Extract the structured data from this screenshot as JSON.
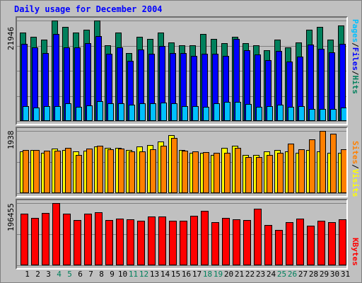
{
  "title": "Daily usage for December 2004",
  "colors": {
    "hits": "#00805c",
    "files": "#0000ff",
    "pages": "#00c0ff",
    "visits": "#ffff00",
    "sites": "#ff8000",
    "kbytes": "#ff0000",
    "weekday": "#000000",
    "weekend": "#00805c"
  },
  "legend": {
    "pages": "Pages",
    "files": "Files",
    "hits": "Hits",
    "sites": "Sites",
    "visits": "Visits",
    "kbytes": "KBytes",
    "sep1": "/",
    "sep2": "/",
    "sep3": "/"
  },
  "chart_data": [
    {
      "type": "bar",
      "y_max_label": "21946",
      "ylim": [
        0,
        21946
      ],
      "grid": true,
      "series": [
        {
          "name": "Hits",
          "values": [
            19300,
            18400,
            17700,
            21946,
            20600,
            19300,
            20000,
            21946,
            16500,
            19300,
            14900,
            18400,
            17900,
            19300,
            17200,
            16500,
            16500,
            19000,
            18000,
            17000,
            18400,
            17000,
            16500,
            15500,
            17800,
            16000,
            17200,
            20000,
            20500,
            17800,
            20800
          ]
        },
        {
          "name": "Files",
          "values": [
            16800,
            16100,
            14800,
            19000,
            16100,
            16000,
            17000,
            18600,
            14700,
            16100,
            13200,
            15600,
            14700,
            16400,
            14800,
            14800,
            14200,
            14700,
            14700,
            14200,
            18000,
            15500,
            14500,
            13300,
            15300,
            13000,
            14000,
            16700,
            15800,
            15000,
            16800
          ]
        },
        {
          "name": "Pages",
          "values": [
            3300,
            2900,
            3300,
            3200,
            3800,
            3100,
            3400,
            4400,
            3900,
            3900,
            3600,
            3900,
            3900,
            4000,
            3900,
            3200,
            3200,
            3100,
            3900,
            4100,
            4100,
            3700,
            3100,
            3300,
            3500,
            3100,
            3200,
            2700,
            2700,
            2600,
            2900
          ]
        }
      ]
    },
    {
      "type": "bar",
      "y_max_label": "1938",
      "ylim": [
        0,
        1938
      ],
      "grid": true,
      "series": [
        {
          "name": "Visits",
          "values": [
            1300,
            1350,
            1250,
            1380,
            1350,
            1300,
            1320,
            1450,
            1420,
            1400,
            1350,
            1450,
            1500,
            1600,
            1800,
            1350,
            1250,
            1260,
            1200,
            1400,
            1480,
            1200,
            1200,
            1300,
            1350,
            1300,
            1250,
            1350,
            1300,
            1250,
            1250
          ]
        },
        {
          "name": "Sites",
          "values": [
            1350,
            1350,
            1320,
            1330,
            1400,
            1190,
            1380,
            1480,
            1360,
            1380,
            1300,
            1300,
            1370,
            1480,
            1720,
            1330,
            1290,
            1270,
            1260,
            1250,
            1400,
            1130,
            1130,
            1180,
            1250,
            1550,
            1370,
            1680,
            1938,
            1860,
            1360
          ]
        }
      ]
    },
    {
      "type": "bar",
      "y_max_label": "196455",
      "ylim": [
        0,
        196455
      ],
      "grid": true,
      "series": [
        {
          "name": "KBytes",
          "values": [
            162000,
            150000,
            165000,
            196455,
            162000,
            143000,
            164000,
            168000,
            143000,
            148000,
            145000,
            140000,
            155000,
            153000,
            140000,
            141000,
            157000,
            172000,
            137000,
            150000,
            144000,
            143000,
            178000,
            128000,
            112000,
            136000,
            148000,
            124000,
            140000,
            137000,
            146000
          ]
        }
      ]
    }
  ],
  "days": [
    "1",
    "2",
    "3",
    "4",
    "5",
    "6",
    "7",
    "8",
    "9",
    "10",
    "11",
    "12",
    "13",
    "14",
    "15",
    "16",
    "17",
    "18",
    "19",
    "20",
    "21",
    "22",
    "23",
    "24",
    "25",
    "26",
    "27",
    "28",
    "29",
    "30",
    "31"
  ],
  "weekend_days": [
    4,
    5,
    11,
    12,
    18,
    19,
    25,
    26
  ]
}
